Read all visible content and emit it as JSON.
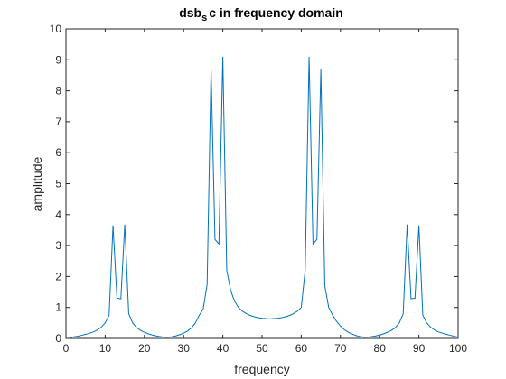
{
  "chart_data": {
    "type": "line",
    "title": {
      "main": "dsb",
      "subscript": "s",
      "rest": "c in frequency domain"
    },
    "xlabel": "frequency",
    "ylabel": "amplitude",
    "xlim": [
      0,
      100
    ],
    "ylim": [
      0,
      10
    ],
    "xticks": [
      0,
      10,
      20,
      30,
      40,
      50,
      60,
      70,
      80,
      90,
      100
    ],
    "yticks": [
      0,
      1,
      2,
      3,
      4,
      5,
      6,
      7,
      8,
      9,
      10
    ],
    "grid": false,
    "line_color": "#0072BD",
    "series": [
      {
        "x": [
          1,
          2,
          3,
          4,
          5,
          6,
          7,
          8,
          9,
          10,
          11,
          12,
          13,
          14,
          15,
          16,
          17,
          18,
          19,
          20,
          21,
          22,
          23,
          24,
          25,
          26,
          27,
          28,
          29,
          30,
          31,
          32,
          33,
          34,
          35,
          36,
          37,
          38,
          39,
          40,
          41,
          42,
          43,
          44,
          45,
          46,
          47,
          48,
          49,
          50,
          51,
          52,
          53,
          54,
          55,
          56,
          57,
          58,
          59,
          60,
          61,
          62,
          63,
          64,
          65,
          66,
          67,
          68,
          69,
          70,
          71,
          72,
          73,
          74,
          75,
          76,
          77,
          78,
          79,
          80,
          81,
          82,
          83,
          84,
          85,
          86,
          87,
          88,
          89,
          90,
          91,
          92,
          93,
          94,
          95,
          96,
          97,
          98,
          99,
          100
        ],
        "y": [
          0.02,
          0.05,
          0.07,
          0.1,
          0.13,
          0.17,
          0.21,
          0.27,
          0.36,
          0.5,
          0.75,
          3.65,
          1.3,
          1.28,
          3.68,
          0.8,
          0.5,
          0.35,
          0.26,
          0.2,
          0.15,
          0.11,
          0.08,
          0.06,
          0.04,
          0.04,
          0.05,
          0.08,
          0.12,
          0.17,
          0.24,
          0.34,
          0.5,
          0.75,
          0.95,
          1.75,
          8.7,
          3.2,
          3.05,
          9.1,
          2.2,
          1.55,
          1.2,
          1.0,
          0.88,
          0.8,
          0.74,
          0.7,
          0.67,
          0.65,
          0.64,
          0.63,
          0.64,
          0.65,
          0.67,
          0.7,
          0.74,
          0.8,
          0.88,
          1.0,
          2.2,
          9.1,
          3.05,
          3.2,
          8.7,
          1.7,
          1.0,
          0.75,
          0.55,
          0.4,
          0.28,
          0.2,
          0.14,
          0.09,
          0.06,
          0.04,
          0.04,
          0.06,
          0.08,
          0.11,
          0.15,
          0.2,
          0.26,
          0.35,
          0.5,
          0.8,
          3.68,
          1.28,
          1.3,
          3.65,
          0.75,
          0.5,
          0.36,
          0.27,
          0.21,
          0.17,
          0.13,
          0.1,
          0.07,
          0.04
        ]
      }
    ]
  }
}
